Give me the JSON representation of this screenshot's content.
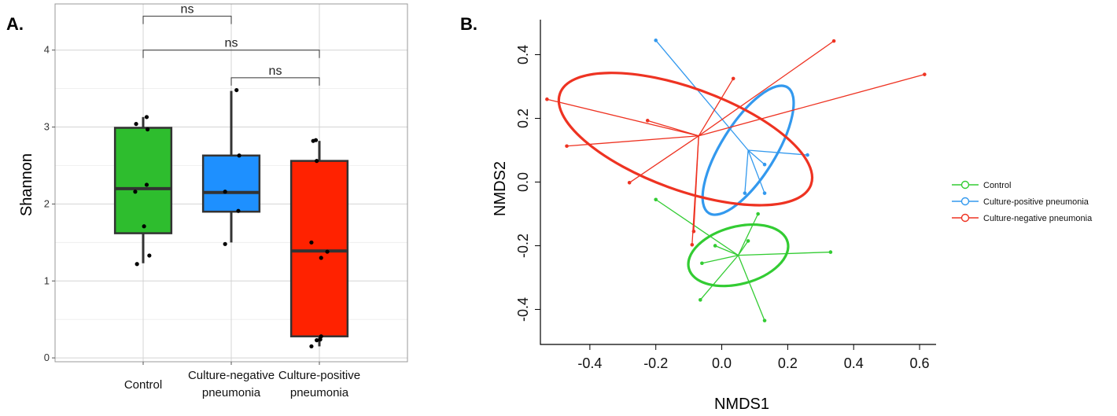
{
  "colors": {
    "control": "#2EBD2E",
    "culture_negative": "#1E90FF",
    "culture_positive": "#FF2200",
    "nmds_green": "#33CC33",
    "nmds_blue": "#3399EE",
    "nmds_red": "#EE3322"
  },
  "chart_data": [
    {
      "type": "box",
      "panel_label": "A.",
      "ylabel": "Shannon",
      "ylim": [
        -0.05,
        4.6
      ],
      "yticks": [
        "0",
        "1",
        "2",
        "3",
        "4"
      ],
      "grid": true,
      "categories": [
        {
          "label_lines": [
            "Control"
          ],
          "color_key": "control",
          "box": {
            "q1": 1.62,
            "median": 2.2,
            "q3": 2.99,
            "whisker_low": 1.23,
            "whisker_high": 3.13
          },
          "points": [
            [
              0.04,
              3.13
            ],
            [
              -0.08,
              3.04
            ],
            [
              0.05,
              2.97
            ],
            [
              0.04,
              2.25
            ],
            [
              -0.09,
              2.16
            ],
            [
              0.01,
              1.71
            ],
            [
              0.07,
              1.33
            ],
            [
              -0.07,
              1.22
            ]
          ]
        },
        {
          "label_lines": [
            "Culture-negative",
            "pneumonia"
          ],
          "color_key": "culture_negative",
          "box": {
            "q1": 1.9,
            "median": 2.15,
            "q3": 2.63,
            "whisker_low": 1.5,
            "whisker_high": 3.47
          },
          "points": [
            [
              0.06,
              3.48
            ],
            [
              0.09,
              2.63
            ],
            [
              -0.07,
              2.16
            ],
            [
              0.08,
              1.91
            ],
            [
              -0.07,
              1.48
            ]
          ]
        },
        {
          "label_lines": [
            "Culture-positive",
            "pneumonia"
          ],
          "color_key": "culture_positive",
          "box": {
            "q1": 0.28,
            "median": 1.39,
            "q3": 2.56,
            "whisker_low": 0.15,
            "whisker_high": 2.82
          },
          "points": [
            [
              -0.07,
              2.82
            ],
            [
              -0.04,
              2.83
            ],
            [
              -0.03,
              2.56
            ],
            [
              -0.09,
              1.5
            ],
            [
              0.09,
              1.38
            ],
            [
              0.02,
              1.3
            ],
            [
              0.02,
              0.28
            ],
            [
              -0.03,
              0.23
            ],
            [
              0.01,
              0.24
            ],
            [
              -0.09,
              0.15
            ]
          ]
        }
      ],
      "annotations": [
        {
          "text": "ns",
          "from": 0,
          "to": 1,
          "y": 4.44
        },
        {
          "text": "ns",
          "from": 0,
          "to": 2,
          "y": 4.0
        },
        {
          "text": "ns",
          "from": 1,
          "to": 2,
          "y": 3.64
        }
      ]
    },
    {
      "type": "scatter",
      "panel_label": "B.",
      "xlabel": "NMDS1",
      "ylabel": "NMDS2",
      "xlim": [
        -0.55,
        0.65
      ],
      "ylim": [
        -0.51,
        0.51
      ],
      "xticks": [
        "-0.4",
        "-0.2",
        "0.0",
        "0.2",
        "0.4",
        "0.6"
      ],
      "yticks": [
        "-0.4",
        "-0.2",
        "0.0",
        "0.2",
        "0.4"
      ],
      "legend_position": "right",
      "series": [
        {
          "name": "Control",
          "color_key": "nmds_green",
          "centroid": [
            0.05,
            -0.23
          ],
          "ellipse": {
            "cx": 0.05,
            "cy": -0.23,
            "rx": 0.155,
            "ry": 0.09,
            "angle_deg": -15
          },
          "points": [
            [
              -0.2,
              -0.055
            ],
            [
              0.11,
              -0.1
            ],
            [
              -0.02,
              -0.2
            ],
            [
              0.08,
              -0.185
            ],
            [
              -0.06,
              -0.255
            ],
            [
              0.33,
              -0.22
            ],
            [
              -0.065,
              -0.37
            ],
            [
              0.13,
              -0.435
            ]
          ]
        },
        {
          "name": "Culture-positive pneumonia",
          "color_key": "nmds_blue",
          "centroid": [
            0.08,
            0.1
          ],
          "ellipse": {
            "cx": 0.08,
            "cy": 0.1,
            "rx": 0.225,
            "ry": 0.085,
            "angle_deg": -58
          },
          "points": [
            [
              -0.2,
              0.445
            ],
            [
              0.26,
              0.085
            ],
            [
              0.13,
              0.055
            ],
            [
              0.07,
              -0.035
            ],
            [
              0.13,
              -0.035
            ]
          ]
        },
        {
          "name": "Culture-negative pneumonia",
          "color_key": "nmds_red",
          "centroid": [
            -0.07,
            0.145
          ],
          "ellipse": {
            "cx": -0.11,
            "cy": 0.135,
            "rx": 0.405,
            "ry": 0.16,
            "angle_deg": 20
          },
          "points": [
            [
              -0.53,
              0.26
            ],
            [
              -0.47,
              0.113
            ],
            [
              -0.225,
              0.193
            ],
            [
              -0.28,
              -0.002
            ],
            [
              0.035,
              0.325
            ],
            [
              0.34,
              0.443
            ],
            [
              0.615,
              0.338
            ],
            [
              -0.085,
              -0.155
            ],
            [
              -0.09,
              -0.197
            ]
          ]
        }
      ]
    }
  ]
}
